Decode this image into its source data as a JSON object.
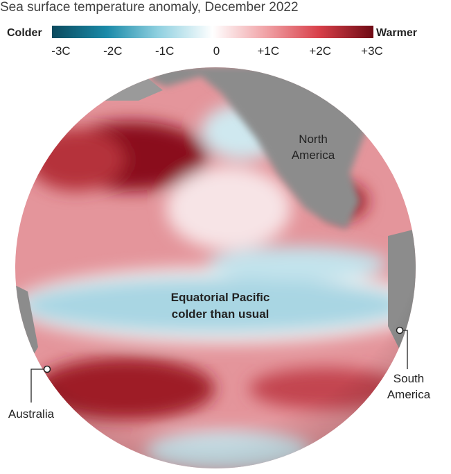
{
  "header": {
    "title": "Sea surface temperature anomaly, December 2022"
  },
  "legend": {
    "low_label": "Colder",
    "high_label": "Warmer",
    "ticks": [
      "-3C",
      "-2C",
      "-1C",
      "0",
      "+1C",
      "+2C",
      "+3C"
    ]
  },
  "annotations": {
    "north_america": [
      "North",
      "America"
    ],
    "equatorial": [
      "Equatorial Pacific",
      "colder than usual"
    ],
    "south_america": [
      "South",
      "America"
    ],
    "australia": [
      "Australia"
    ]
  }
}
